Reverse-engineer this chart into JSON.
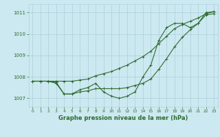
{
  "x": [
    0,
    1,
    2,
    3,
    4,
    5,
    6,
    7,
    8,
    9,
    10,
    11,
    12,
    13,
    14,
    15,
    16,
    17,
    18,
    19,
    20,
    21,
    22,
    23
  ],
  "line_jagged": [
    1007.8,
    1007.8,
    1007.8,
    1007.7,
    1007.2,
    1007.2,
    1007.4,
    1007.5,
    1007.7,
    1007.3,
    1007.1,
    1007.0,
    1007.1,
    1007.3,
    1008.0,
    1008.55,
    1009.7,
    1010.3,
    1010.5,
    1010.5,
    1010.3,
    1010.5,
    1011.0,
    1011.05
  ],
  "line_upper": [
    1007.8,
    1007.8,
    1007.8,
    1007.8,
    1007.8,
    1007.8,
    1007.85,
    1007.9,
    1008.05,
    1008.15,
    1008.25,
    1008.4,
    1008.55,
    1008.75,
    1008.95,
    1009.2,
    1009.55,
    1009.9,
    1010.25,
    1010.45,
    1010.6,
    1010.75,
    1010.95,
    1011.05
  ],
  "line_lower": [
    1007.8,
    1007.8,
    1007.8,
    1007.75,
    1007.2,
    1007.2,
    1007.3,
    1007.35,
    1007.45,
    1007.45,
    1007.45,
    1007.45,
    1007.5,
    1007.6,
    1007.7,
    1007.9,
    1008.35,
    1008.85,
    1009.4,
    1009.85,
    1010.2,
    1010.5,
    1010.9,
    1010.95
  ],
  "line_color": "#2d6a2d",
  "bg_color": "#cce8f0",
  "grid_color": "#b0d4de",
  "title": "Graphe pression niveau de la mer (hPa)",
  "xlim": [
    -0.5,
    23.5
  ],
  "ylim": [
    1006.6,
    1011.4
  ],
  "yticks": [
    1007,
    1008,
    1009,
    1010,
    1011
  ],
  "xticks": [
    0,
    1,
    2,
    3,
    4,
    5,
    6,
    7,
    8,
    9,
    10,
    11,
    12,
    13,
    14,
    15,
    16,
    17,
    18,
    19,
    20,
    21,
    22,
    23
  ],
  "ylabel_fontsize": 5.5,
  "xlabel_fontsize": 4.5,
  "title_fontsize": 6.0
}
